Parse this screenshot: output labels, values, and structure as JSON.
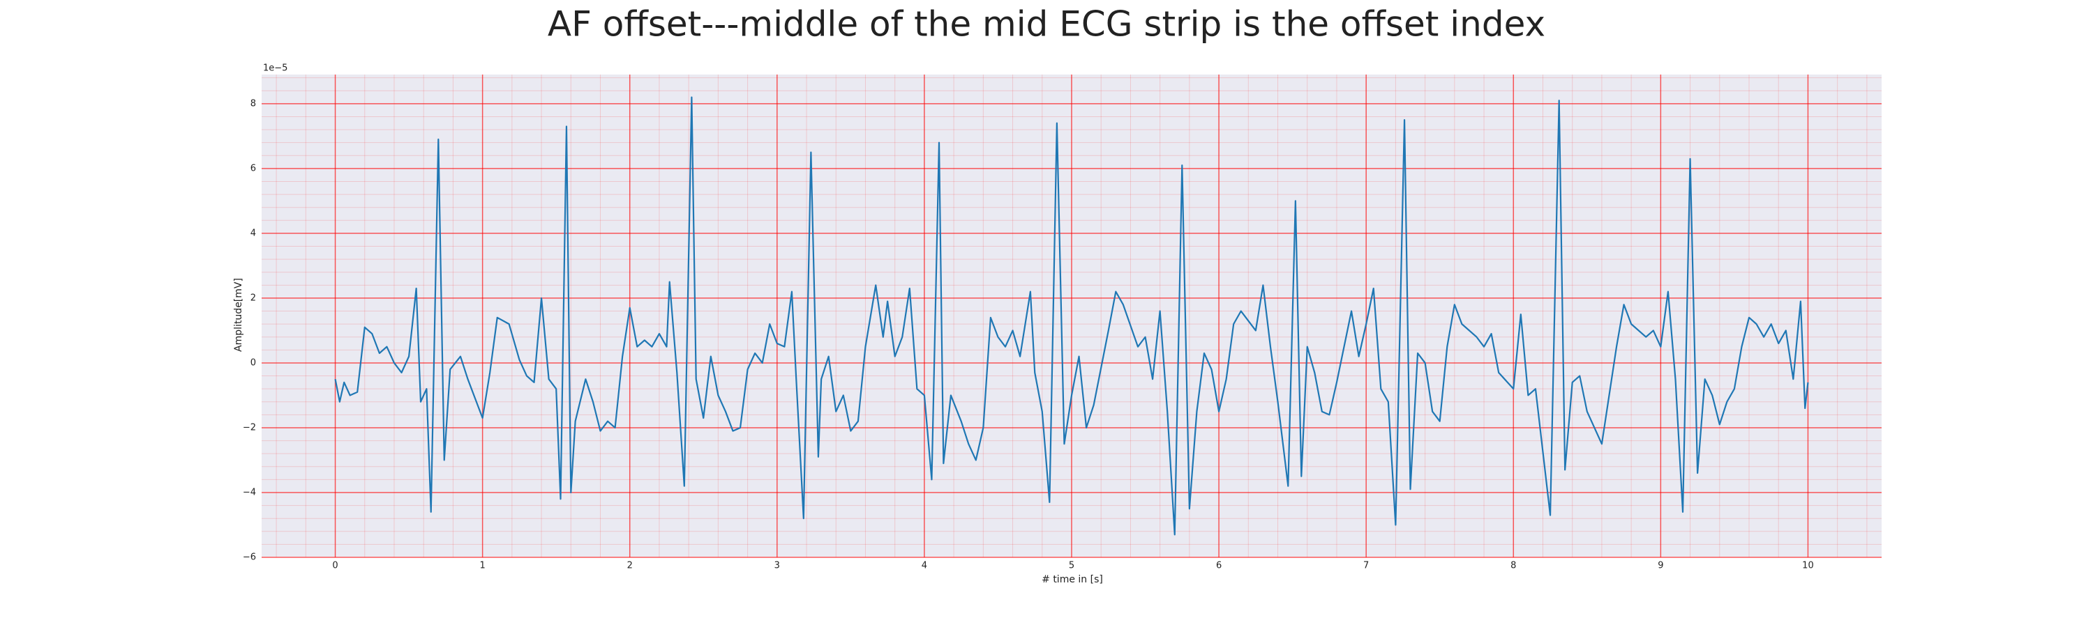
{
  "chart_data": {
    "type": "line",
    "title": "AF offset---middle of the mid ECG strip is the offset index",
    "x_label": "# time in [s]",
    "y_label": "Amplitude[mV]",
    "y_offset_label": "1e−5",
    "x": [
      0,
      0.03,
      0.06,
      0.1,
      0.15,
      0.2,
      0.25,
      0.3,
      0.35,
      0.4,
      0.45,
      0.5,
      0.55,
      0.58,
      0.62,
      0.65,
      0.7,
      0.74,
      0.78,
      0.85,
      0.9,
      0.95,
      1.0,
      1.05,
      1.1,
      1.18,
      1.25,
      1.3,
      1.35,
      1.4,
      1.45,
      1.5,
      1.53,
      1.57,
      1.6,
      1.63,
      1.7,
      1.75,
      1.8,
      1.85,
      1.9,
      1.95,
      2.0,
      2.05,
      2.1,
      2.15,
      2.2,
      2.25,
      2.27,
      2.32,
      2.37,
      2.42,
      2.45,
      2.5,
      2.55,
      2.6,
      2.65,
      2.7,
      2.75,
      2.8,
      2.85,
      2.9,
      2.95,
      3.0,
      3.05,
      3.1,
      3.13,
      3.18,
      3.23,
      3.28,
      3.3,
      3.35,
      3.4,
      3.45,
      3.5,
      3.55,
      3.6,
      3.67,
      3.72,
      3.75,
      3.8,
      3.85,
      3.9,
      3.95,
      4.0,
      4.05,
      4.1,
      4.13,
      4.18,
      4.25,
      4.3,
      4.35,
      4.4,
      4.45,
      4.5,
      4.55,
      4.6,
      4.65,
      4.72,
      4.75,
      4.8,
      4.85,
      4.9,
      4.95,
      5.0,
      5.05,
      5.1,
      5.15,
      5.25,
      5.3,
      5.35,
      5.45,
      5.5,
      5.55,
      5.6,
      5.65,
      5.7,
      5.75,
      5.8,
      5.85,
      5.9,
      5.95,
      6.0,
      6.05,
      6.1,
      6.15,
      6.25,
      6.3,
      6.35,
      6.4,
      6.47,
      6.52,
      6.56,
      6.6,
      6.65,
      6.7,
      6.75,
      6.8,
      6.9,
      6.95,
      7.0,
      7.05,
      7.1,
      7.15,
      7.2,
      7.26,
      7.3,
      7.35,
      7.4,
      7.45,
      7.5,
      7.55,
      7.6,
      7.65,
      7.75,
      7.8,
      7.85,
      7.9,
      8.0,
      8.05,
      8.1,
      8.15,
      8.25,
      8.31,
      8.35,
      8.4,
      8.45,
      8.5,
      8.55,
      8.6,
      8.65,
      8.7,
      8.75,
      8.8,
      8.9,
      8.95,
      9.0,
      9.05,
      9.1,
      9.15,
      9.2,
      9.25,
      9.3,
      9.35,
      9.4,
      9.45,
      9.5,
      9.55,
      9.6,
      9.65,
      9.7,
      9.75,
      9.8,
      9.85,
      9.9,
      9.95,
      9.98,
      10.0
    ],
    "series": [
      {
        "name": "ECG",
        "color": "#1f77b4",
        "values": [
          -0.5,
          -1.2,
          -0.6,
          -1.0,
          -0.9,
          1.1,
          0.9,
          0.3,
          0.5,
          0,
          -0.3,
          0.2,
          2.3,
          -1.2,
          -0.8,
          -4.6,
          6.9,
          -3.0,
          -0.2,
          0.2,
          -0.5,
          -1.1,
          -1.7,
          -0.3,
          1.4,
          1.2,
          0.1,
          -0.4,
          -0.6,
          2.0,
          -0.5,
          -0.8,
          -4.2,
          7.3,
          -4.0,
          -1.8,
          -0.5,
          -1.2,
          -2.1,
          -1.8,
          -2.0,
          0.2,
          1.7,
          0.5,
          0.7,
          0.5,
          0.9,
          0.5,
          2.5,
          -0.3,
          -3.8,
          8.2,
          -0.5,
          -1.7,
          0.2,
          -1.0,
          -1.5,
          -2.1,
          -2.0,
          -0.2,
          0.3,
          0,
          1.2,
          0.6,
          0.5,
          2.2,
          -0.5,
          -4.8,
          6.5,
          -2.9,
          -0.5,
          0.2,
          -1.5,
          -1.0,
          -2.1,
          -1.8,
          0.5,
          2.4,
          0.8,
          1.9,
          0.2,
          0.8,
          2.3,
          -0.8,
          -1.0,
          -3.6,
          6.8,
          -3.1,
          -1.0,
          -1.8,
          -2.5,
          -3.0,
          -2.0,
          1.4,
          0.8,
          0.5,
          1.0,
          0.2,
          2.2,
          -0.3,
          -1.5,
          -4.3,
          7.4,
          -2.5,
          -1.0,
          0.2,
          -2.0,
          -1.3,
          1.0,
          2.2,
          1.8,
          0.5,
          0.8,
          -0.5,
          1.6,
          -1.5,
          -5.3,
          6.1,
          -4.5,
          -1.5,
          0.3,
          -0.2,
          -1.5,
          -0.5,
          1.2,
          1.6,
          1.0,
          2.4,
          0.5,
          -1.2,
          -3.8,
          5.0,
          -3.5,
          0.5,
          -0.3,
          -1.5,
          -1.6,
          -0.6,
          1.6,
          0.2,
          1.2,
          2.3,
          -0.8,
          -1.2,
          -5.0,
          7.5,
          -3.9,
          0.3,
          0,
          -1.5,
          -1.8,
          0.5,
          1.8,
          1.2,
          0.8,
          0.5,
          0.9,
          -0.3,
          -0.8,
          1.5,
          -1.0,
          -0.8,
          -4.7,
          8.1,
          -3.3,
          -0.6,
          -0.4,
          -1.5,
          -2.0,
          -2.5,
          -1.0,
          0.5,
          1.8,
          1.2,
          0.8,
          1.0,
          0.5,
          2.2,
          -0.5,
          -4.6,
          6.3,
          -3.4,
          -0.5,
          -1.0,
          -1.9,
          -1.2,
          -0.8,
          0.5,
          1.4,
          1.2,
          0.8,
          1.2,
          0.6,
          1.0,
          -0.5,
          1.9,
          -1.4,
          -0.6
        ]
      }
    ],
    "xlim": [
      -0.5,
      10.5
    ],
    "xticks": [
      0,
      1,
      2,
      3,
      4,
      5,
      6,
      7,
      8,
      9,
      10
    ],
    "ylim": [
      -6,
      8.9
    ],
    "yticks": [
      {
        "value": -6,
        "label": "−6"
      },
      {
        "value": -4,
        "label": "−4"
      },
      {
        "value": -2,
        "label": "−2"
      },
      0,
      2,
      4,
      6,
      8
    ],
    "grid": true,
    "minor_grid": true,
    "grid_color": "#ff0000",
    "background": "#eaeaf2"
  }
}
